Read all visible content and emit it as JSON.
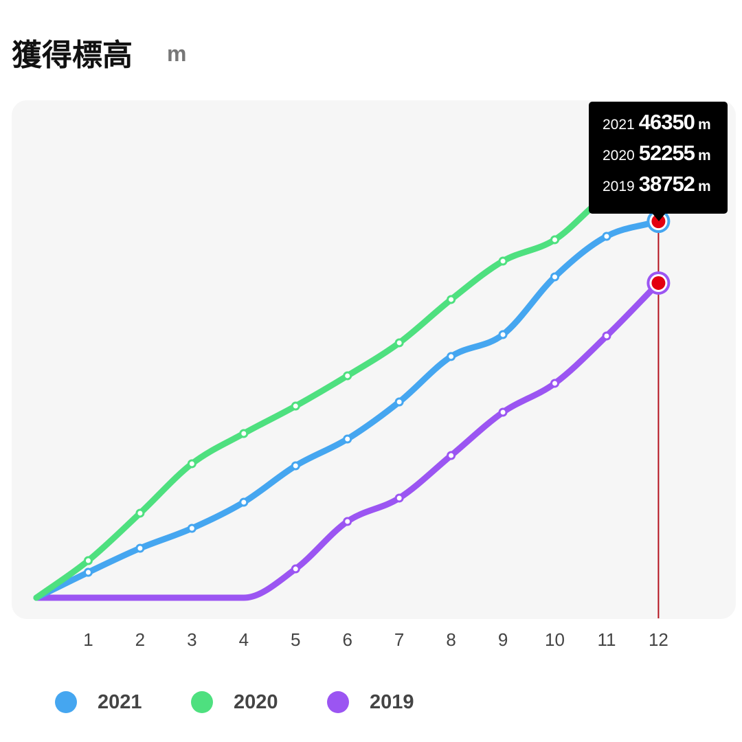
{
  "header": {
    "title": "獲得標高",
    "unit": "m"
  },
  "tooltip": {
    "rows": [
      {
        "year": "2021",
        "value": "46350",
        "unit": "m"
      },
      {
        "year": "2020",
        "value": "52255",
        "unit": "m"
      },
      {
        "year": "2019",
        "value": "38752",
        "unit": "m"
      }
    ]
  },
  "chart_data": {
    "type": "line",
    "title": "獲得標高",
    "ylabel": "m",
    "x": [
      0,
      1,
      2,
      3,
      4,
      5,
      6,
      7,
      8,
      9,
      10,
      11,
      12
    ],
    "x_tick_labels": [
      "1",
      "2",
      "3",
      "4",
      "5",
      "6",
      "7",
      "8",
      "9",
      "10",
      "11",
      "12"
    ],
    "ylim": [
      0,
      55000
    ],
    "grid": false,
    "legend_position": "bottom",
    "selected_x": 12,
    "series": [
      {
        "name": "2019",
        "color": "#9b55f2",
        "values": [
          0,
          0,
          0,
          0,
          0,
          3550,
          9390,
          12270,
          17510,
          22840,
          26400,
          32230,
          38752
        ]
      },
      {
        "name": "2021",
        "color": "#45a6f0",
        "values": [
          0,
          3130,
          6090,
          8545,
          11760,
          16245,
          19545,
          24110,
          29700,
          32400,
          39510,
          44500,
          46350
        ]
      },
      {
        "name": "2020",
        "color": "#4ee07f",
        "values": [
          0,
          4570,
          10410,
          16500,
          20220,
          23600,
          27330,
          31390,
          36720,
          41450,
          44080,
          49500,
          52255
        ]
      }
    ]
  },
  "legend": [
    {
      "label": "2021",
      "color": "#45a6f0"
    },
    {
      "label": "2020",
      "color": "#4ee07f"
    },
    {
      "label": "2019",
      "color": "#9b55f2"
    }
  ],
  "colors": {
    "marker": "#e3000f",
    "cursor": "#b3121d"
  }
}
